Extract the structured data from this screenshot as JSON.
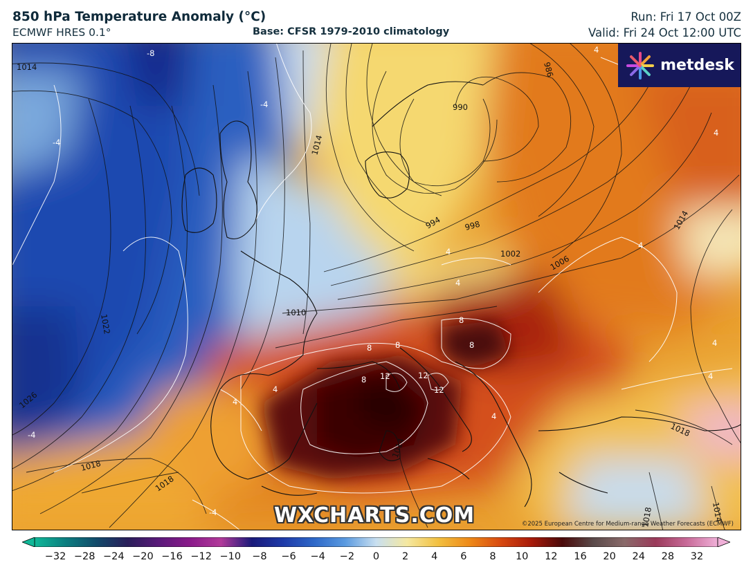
{
  "header": {
    "title": "850 hPa Temperature Anomaly (°C)",
    "model": "ECMWF HRES 0.1°",
    "base": "Base: CFSR 1979-2010 climatology",
    "run": "Run: Fri 17 Oct 00Z",
    "valid": "Valid: Fri 24 Oct 12:00 UTC"
  },
  "logo": {
    "text": "metdesk",
    "icon": "flower-burst-icon"
  },
  "watermark": "WXCHARTS.COM",
  "copyright": "©2025 European Centre for Medium-range Weather Forecasts (ECMWF)",
  "pressure_labels": [
    "1014",
    "1022",
    "1026",
    "1018",
    "1018",
    "1010",
    "986",
    "994",
    "998",
    "1002",
    "1006",
    "1014",
    "1018",
    "1014",
    "1014",
    "1018",
    "990"
  ],
  "anomaly_labels": [
    "-8",
    "-4",
    "-4",
    "-4",
    "-4",
    "4",
    "4",
    "4",
    "4",
    "4",
    "4",
    "4",
    "4",
    "4",
    "4",
    "8",
    "8",
    "8",
    "8",
    "8",
    "12",
    "12",
    "12"
  ],
  "colorbar": {
    "ticks": [
      "−32",
      "−28",
      "−24",
      "−20",
      "−16",
      "−12",
      "−10",
      "−8",
      "−6",
      "−4",
      "−2",
      "0",
      "2",
      "4",
      "6",
      "8",
      "10",
      "12",
      "16",
      "20",
      "24",
      "28",
      "32"
    ],
    "colors": [
      "#10b898",
      "#0c7e80",
      "#124a6a",
      "#2a1e5a",
      "#5a1a7a",
      "#8a1a8a",
      "#b23a9a",
      "#1a1a7a",
      "#1e3aa8",
      "#2e68c8",
      "#5a9ae0",
      "#c8dff0",
      "#f5e8a0",
      "#f2c040",
      "#ee8a18",
      "#d84a10",
      "#a81a0a",
      "#4a0a0a",
      "#5a4a4a",
      "#8a6a6a",
      "#9a3a5a",
      "#c86a98",
      "#f0b0d8"
    ]
  }
}
